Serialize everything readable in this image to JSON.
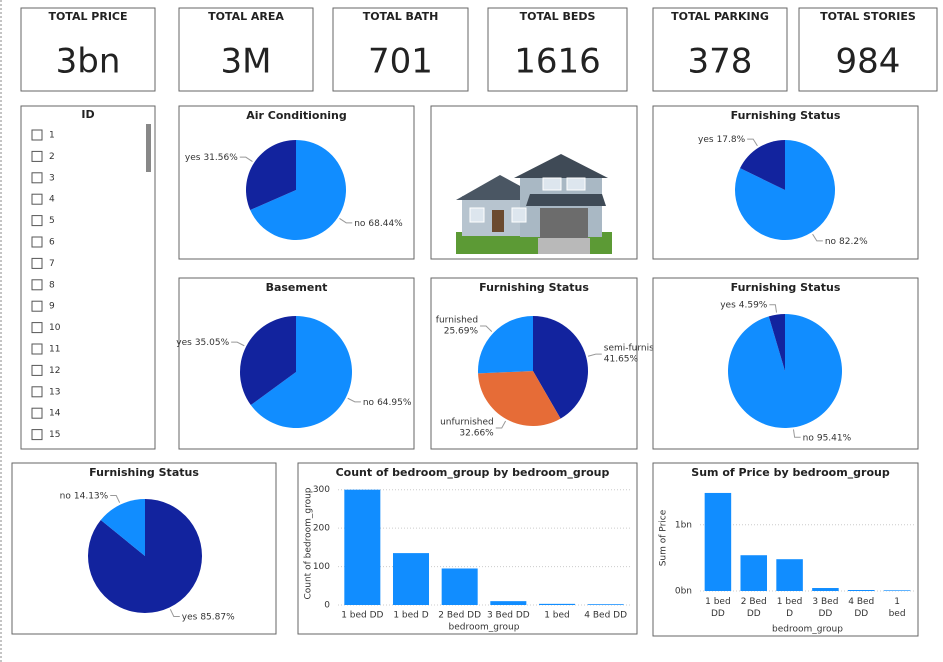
{
  "cards": [
    {
      "label": "TOTAL PRICE",
      "value": "3bn"
    },
    {
      "label": "TOTAL AREA",
      "value": "3M"
    },
    {
      "label": "TOTAL BATH",
      "value": 701
    },
    {
      "label": "TOTAL BEDS",
      "value": 1616
    },
    {
      "label": "TOTAL PARKING",
      "value": 378
    },
    {
      "label": "TOTAL STORIES",
      "value": 984
    }
  ],
  "slicer": {
    "title": "ID",
    "items": [
      1,
      2,
      3,
      4,
      5,
      6,
      7,
      8,
      9,
      10,
      11,
      12,
      13,
      14,
      15
    ]
  },
  "chart_data": [
    {
      "type": "pie",
      "title": "Air Conditioning",
      "categories": [
        "no",
        "yes"
      ],
      "values": [
        68.44,
        31.56
      ],
      "value_labels": [
        "68.44%",
        "31.56%"
      ],
      "colors": [
        "#118dff",
        "#12239e"
      ]
    },
    {
      "type": "pie",
      "title": "Furnishing Status",
      "categories": [
        "no",
        "yes"
      ],
      "values": [
        82.2,
        17.8
      ],
      "value_labels": [
        "82.2%",
        "17.8%"
      ],
      "colors": [
        "#118dff",
        "#12239e"
      ]
    },
    {
      "type": "pie",
      "title": "Basement",
      "categories": [
        "no",
        "yes"
      ],
      "values": [
        64.95,
        35.05
      ],
      "value_labels": [
        "64.95%",
        "35.05%"
      ],
      "colors": [
        "#118dff",
        "#12239e"
      ]
    },
    {
      "type": "pie",
      "title": "Furnishing Status",
      "categories": [
        "semi-furnis...",
        "unfurnished",
        "furnished"
      ],
      "values": [
        41.65,
        32.66,
        25.69
      ],
      "value_labels": [
        "41.65%",
        "32.66%",
        "25.69%"
      ],
      "colors": [
        "#12239e",
        "#e66c37",
        "#118dff"
      ]
    },
    {
      "type": "pie",
      "title": "Furnishing Status",
      "categories": [
        "no",
        "yes"
      ],
      "values": [
        95.41,
        4.59
      ],
      "value_labels": [
        "95.41%",
        "4.59%"
      ],
      "colors": [
        "#118dff",
        "#12239e"
      ]
    },
    {
      "type": "pie",
      "title": "Furnishing Status",
      "categories": [
        "yes",
        "no"
      ],
      "values": [
        85.87,
        14.13
      ],
      "value_labels": [
        "85.87%",
        "14.13%"
      ],
      "colors": [
        "#12239e",
        "#118dff"
      ]
    },
    {
      "type": "bar",
      "title": "Count of bedroom_group by bedroom_group",
      "x_label": "bedroom_group",
      "y_label": "Count of bedroom_group",
      "categories": [
        "1 bed DD",
        "1 bed D",
        "2 Bed DD",
        "3 Bed DD",
        "1 bed",
        "4 Bed DD"
      ],
      "values": [
        300,
        135,
        95,
        10,
        3,
        2
      ],
      "color": "#118dff",
      "ylim": [
        0,
        320
      ],
      "yticks": [
        0,
        100,
        200,
        300
      ],
      "grid": true
    },
    {
      "type": "bar",
      "title": "Sum of Price by bedroom_group",
      "x_label": "bedroom_group",
      "y_label": "Sum of Price",
      "categories": [
        "1 bed DD",
        "2 Bed DD",
        "1 bed D",
        "3 Bed DD",
        "4 Bed DD",
        "1 bed"
      ],
      "values": [
        1.48,
        0.54,
        0.48,
        0.045,
        0.015,
        0.01
      ],
      "color": "#118dff",
      "ylim": [
        0,
        1.6
      ],
      "yticks": [
        {
          "value": 0,
          "label": "0bn"
        },
        {
          "value": 1,
          "label": "1bn"
        }
      ],
      "grid": true
    }
  ]
}
